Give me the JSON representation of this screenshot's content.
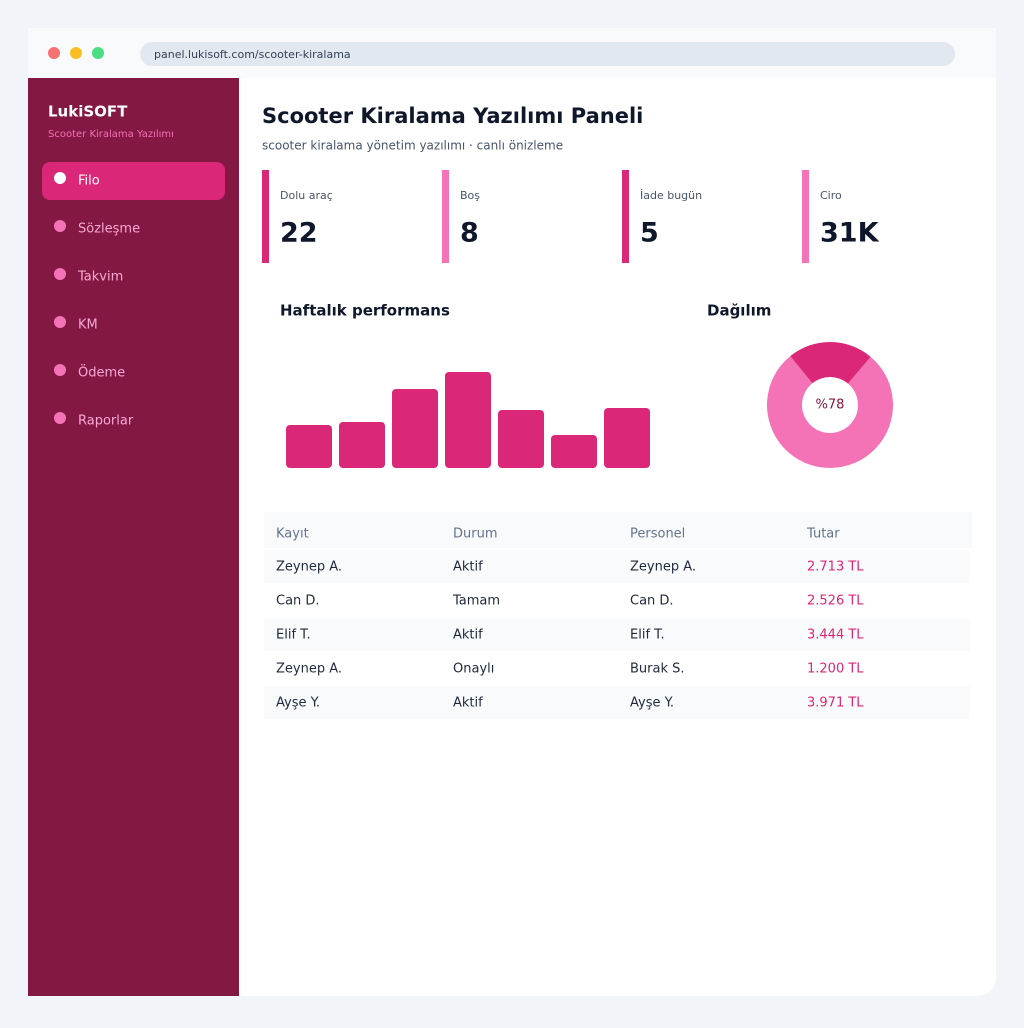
{
  "browser": {
    "url": "panel.lukisoft.com/scooter-kiralama"
  },
  "sidebar": {
    "brand": "LukiSOFT",
    "tagline": "Scooter Kiralama Yazılımı",
    "nav": [
      "Filo",
      "Sözleşme",
      "Takvim",
      "KM",
      "Ödeme",
      "Raporlar"
    ],
    "active": 0
  },
  "header": {
    "title": "Scooter Kiralama Yazılımı Paneli",
    "subtitle": "scooter kiralama yönetim yazılımı · canlı önizleme"
  },
  "stats": [
    {
      "label": "Dolu araç",
      "value": "22"
    },
    {
      "label": "Boş",
      "value": "8"
    },
    {
      "label": "İade bugün",
      "value": "5"
    },
    {
      "label": "Ciro",
      "value": "31K"
    }
  ],
  "chart_data": [
    {
      "type": "bar",
      "title": "Haftalık performans",
      "values": [
        43,
        46,
        79,
        96,
        58,
        33,
        60
      ],
      "color": "#db2777"
    },
    {
      "type": "pie",
      "title": "Dağılım",
      "values": [
        78
      ],
      "value_labels": [
        "%78"
      ],
      "colors": [
        "#f472b6",
        "#db2777"
      ]
    }
  ],
  "table": {
    "columns": [
      "Kayıt",
      "Durum",
      "Personel",
      "Tutar"
    ],
    "rows": [
      [
        "Zeynep A.",
        "Aktif",
        "Zeynep A.",
        "2.713 TL"
      ],
      [
        "Can D.",
        "Tamam",
        "Can D.",
        "2.526 TL"
      ],
      [
        "Elif T.",
        "Aktif",
        "Elif T.",
        "3.444 TL"
      ],
      [
        "Zeynep A.",
        "Onaylı",
        "Burak S.",
        "1.200 TL"
      ],
      [
        "Ayşe Y.",
        "Aktif",
        "Ayşe Y.",
        "3.971 TL"
      ]
    ]
  }
}
